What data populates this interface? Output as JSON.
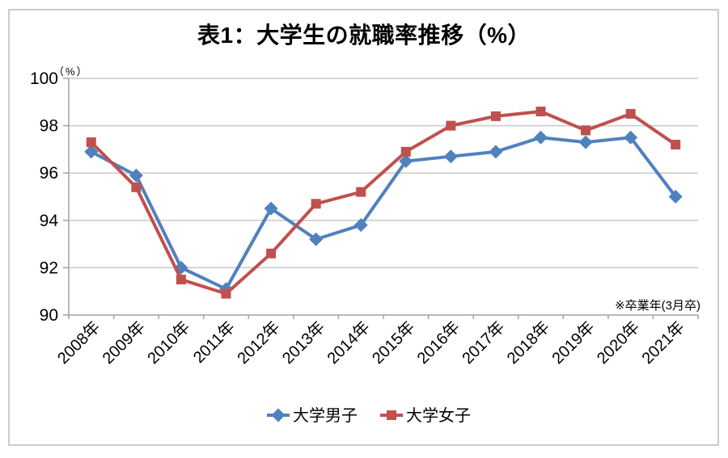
{
  "chart_data": {
    "type": "line",
    "title": "表1：大学生の就職率推移（%）",
    "unit_label": "（%）",
    "annotation": "※卒業年(3月卒)",
    "categories": [
      "2008年",
      "2009年",
      "2010年",
      "2011年",
      "2012年",
      "2013年",
      "2014年",
      "2015年",
      "2016年",
      "2017年",
      "2018年",
      "2019年",
      "2020年",
      "2021年"
    ],
    "series": [
      {
        "name": "大学男子",
        "color": "#4F81BD",
        "marker": "diamond",
        "values": [
          96.9,
          95.9,
          92.0,
          91.1,
          94.5,
          93.2,
          93.8,
          96.5,
          96.7,
          96.9,
          97.5,
          97.3,
          97.5,
          95.0
        ]
      },
      {
        "name": "大学女子",
        "color": "#C0504D",
        "marker": "square",
        "values": [
          97.3,
          95.4,
          91.5,
          90.9,
          92.6,
          94.7,
          95.2,
          96.9,
          98.0,
          98.4,
          98.6,
          97.8,
          98.5,
          97.2
        ]
      }
    ],
    "y_axis": {
      "min": 90,
      "max": 100,
      "step": 2,
      "ticks": [
        100,
        98,
        96,
        94,
        92,
        90
      ]
    },
    "x_axis": {
      "label_rotation_deg": -45
    },
    "legend_position": "bottom",
    "grid": true,
    "style": {
      "gridline_color": "#c9c9c9",
      "axis_color": "#a3a3a3",
      "frame_border_color": "#cbcbcb",
      "text_color": "#000000"
    }
  }
}
